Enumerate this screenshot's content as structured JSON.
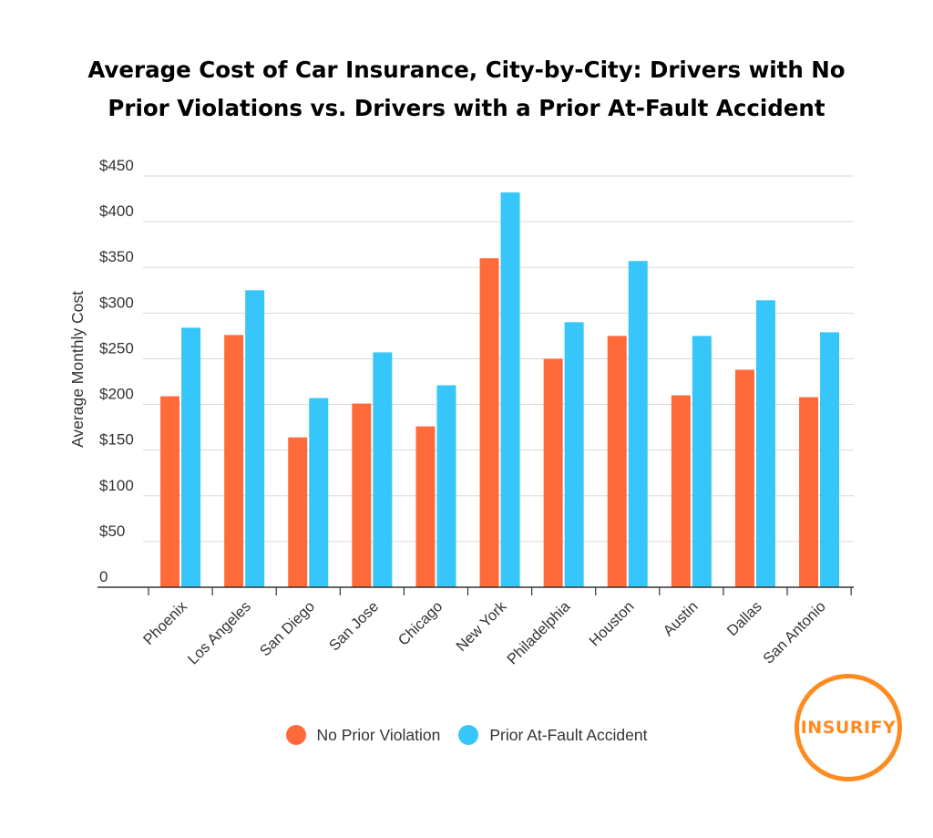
{
  "colors": {
    "no_violation": "#ff6a3a",
    "at_fault": "#36c6fa",
    "logo": "#ff8b1f",
    "axis": "#333333",
    "grid": "#d9d9d9"
  },
  "logo_text": "INSURIFY",
  "chart_data": {
    "type": "bar",
    "title_lines": [
      "Average Cost of Car Insurance, City-by-City: Drivers with No",
      "Prior Violations vs. Drivers with a Prior At-Fault Accident"
    ],
    "xlabel": "",
    "ylabel": "Average Monthly Cost",
    "ylim": [
      0,
      450
    ],
    "yticks": [
      0,
      50,
      100,
      150,
      200,
      250,
      300,
      350,
      400,
      450
    ],
    "ytick_labels": [
      "0",
      "$50",
      "$100",
      "$150",
      "$200",
      "$250",
      "$300",
      "$350",
      "$400",
      "$450"
    ],
    "grid": true,
    "legend_position": "bottom",
    "categories": [
      "Phoenix",
      "Los Angeles",
      "San Diego",
      "San Jose",
      "Chicago",
      "New York",
      "Philadelphia",
      "Houston",
      "Austin",
      "Dallas",
      "San Antonio"
    ],
    "series": [
      {
        "name": "No Prior Violation",
        "values": [
          209,
          276,
          164,
          201,
          176,
          360,
          250,
          275,
          210,
          238,
          208
        ]
      },
      {
        "name": "Prior At-Fault Accident",
        "values": [
          284,
          325,
          207,
          257,
          221,
          432,
          290,
          357,
          275,
          314,
          279
        ]
      }
    ]
  }
}
